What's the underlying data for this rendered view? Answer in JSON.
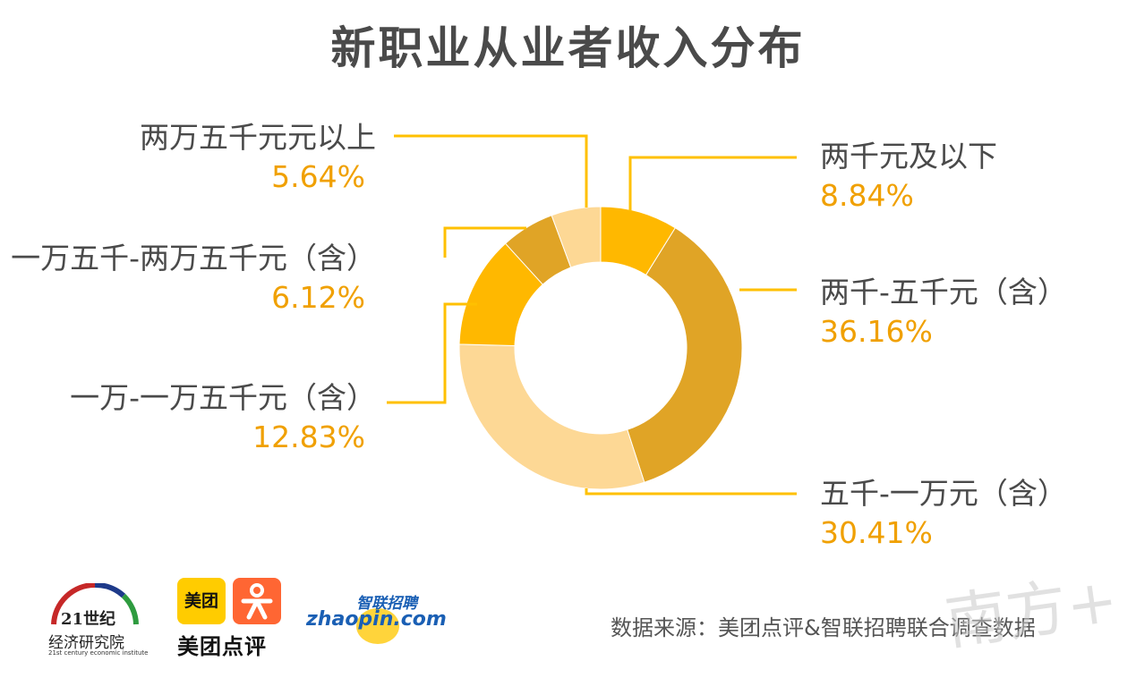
{
  "title": "新职业从业者收入分布",
  "footer": {
    "source": "数据来源：美团点评&智联招聘联合调查数据",
    "logo_21_line1": "21世纪",
    "logo_21_line2": "经济研究院",
    "logo_21_line3": "21st century economic institute",
    "logo_meituan_square": "美团",
    "logo_meituan_text": "美团点评",
    "logo_zhaopin_top": "智联招聘",
    "logo_zhaopin_bottom": "zhaopin.com",
    "watermark": "南方+"
  },
  "chart_data": {
    "type": "pie",
    "donut": true,
    "title": "新职业从业者收入分布",
    "unit": "%",
    "slices": [
      {
        "label": "两千元及以下",
        "value": 8.84,
        "value_label": "8.84%",
        "color": "#FFB800"
      },
      {
        "label": "两千-五千元（含）",
        "value": 36.16,
        "value_label": "36.16%",
        "color": "#E0A426"
      },
      {
        "label": "五千-一万元（含）",
        "value": 30.41,
        "value_label": "30.41%",
        "color": "#FDD895"
      },
      {
        "label": "一万-一万五千元（含）",
        "value": 12.83,
        "value_label": "12.83%",
        "color": "#FFB800"
      },
      {
        "label": "一万五千-两万五千元（含）",
        "value": 6.12,
        "value_label": "6.12%",
        "color": "#E0A426"
      },
      {
        "label": "两万五千元元以上",
        "value": 5.64,
        "value_label": "5.64%",
        "color": "#FDD895"
      }
    ],
    "label_color": "#4a4a4a",
    "value_color": "#F0A000",
    "leader_color": "#FFC000"
  }
}
